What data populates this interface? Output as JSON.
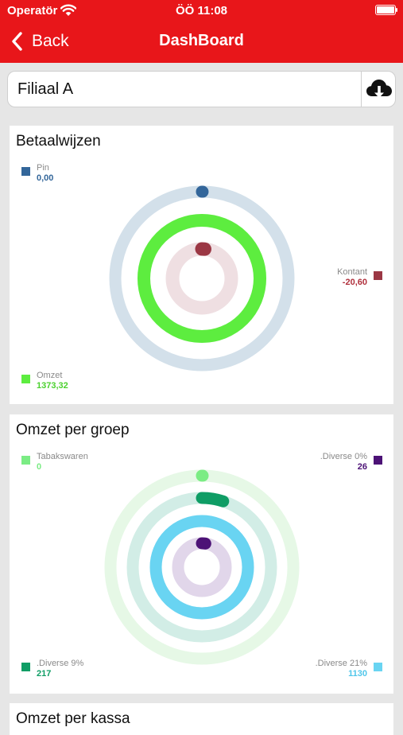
{
  "status": {
    "carrier": "Operatör",
    "time": "ÖÖ 11:08"
  },
  "nav": {
    "back_label": "Back",
    "title": "DashBoard"
  },
  "store": {
    "value": "Filiaal A"
  },
  "cards": [
    {
      "title": "Betaalwijzen"
    },
    {
      "title": "Omzet per groep"
    },
    {
      "title": "Omzet per kassa"
    }
  ],
  "chart_data": [
    {
      "type": "radial-bar",
      "title": "Betaalwijzen",
      "series": [
        {
          "name": "Pin",
          "value": 0.0,
          "label": "0,00",
          "color": "#33669a",
          "track": "#d3e0ea"
        },
        {
          "name": "Omzet",
          "value": 1373.32,
          "label": "1373,32",
          "color": "#5ded3f",
          "track": "#d3f7cd"
        },
        {
          "name": "Kontant",
          "value": -20.6,
          "label": "-20,60",
          "color": "#9b3744",
          "track": "#efdfe2"
        }
      ],
      "legend_positions": [
        "top-left",
        "bottom-left",
        "right"
      ]
    },
    {
      "type": "radial-bar",
      "title": "Omzet per groep",
      "series": [
        {
          "name": "Tabakswaren",
          "value": 0,
          "label": "0",
          "color": "#7bec84",
          "track": "#e6f8e6"
        },
        {
          "name": ".Diverse 9%",
          "value": 217,
          "label": "217",
          "color": "#0f9d65",
          "track": "#d2ede6"
        },
        {
          "name": ".Diverse 21%",
          "value": 1130,
          "label": "1130",
          "color": "#69d4f2",
          "track": "#d7f2fb"
        },
        {
          "name": ".Diverse 0%",
          "value": 26,
          "label": "26",
          "color": "#4c1276",
          "track": "#e1d6ea"
        }
      ],
      "legend_positions": [
        "top-left",
        "bottom-left",
        "bottom-right",
        "top-right"
      ]
    }
  ]
}
